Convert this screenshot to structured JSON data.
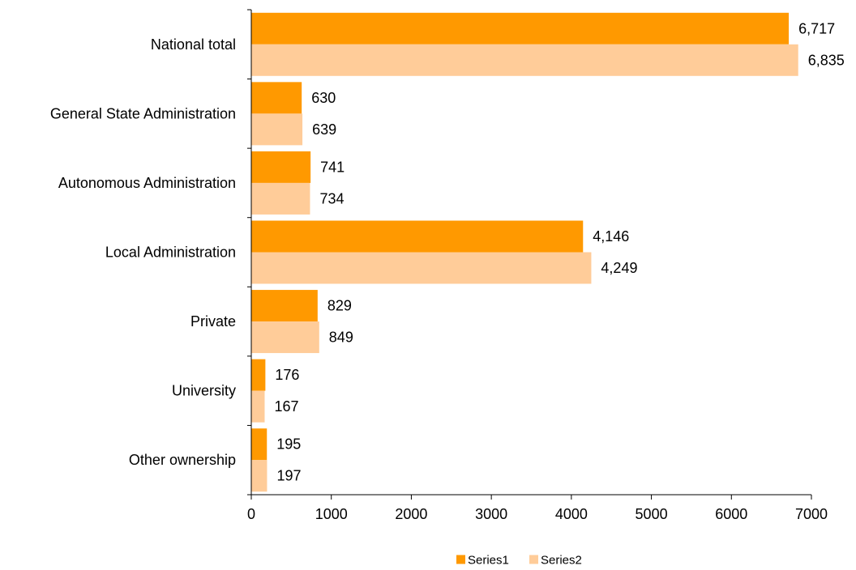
{
  "chart_data": {
    "type": "bar",
    "orientation": "horizontal",
    "title": "",
    "xlabel": "",
    "ylabel": "",
    "categories": [
      "National total",
      "General State Administration",
      "Autonomous Administration",
      "Local Administration",
      "Private",
      "University",
      "Other ownership"
    ],
    "series": [
      {
        "name": "Series1",
        "color": "#FF9900",
        "values": [
          6717,
          630,
          741,
          4146,
          829,
          176,
          195
        ],
        "labels": [
          "6,717",
          "630",
          "741",
          "4,146",
          "829",
          "176",
          "195"
        ]
      },
      {
        "name": "Series2",
        "color": "#FFCC99",
        "values": [
          6835,
          639,
          734,
          4249,
          849,
          167,
          197
        ],
        "labels": [
          "6,835",
          "639",
          "734",
          "4,249",
          "849",
          "167",
          "197"
        ]
      }
    ],
    "xlim": [
      0,
      7000
    ],
    "xticks": [
      0,
      1000,
      2000,
      3000,
      4000,
      5000,
      6000,
      7000
    ],
    "grid": false,
    "legend": {
      "placement": "bottom",
      "entries": [
        "Series1",
        "Series2"
      ]
    }
  }
}
